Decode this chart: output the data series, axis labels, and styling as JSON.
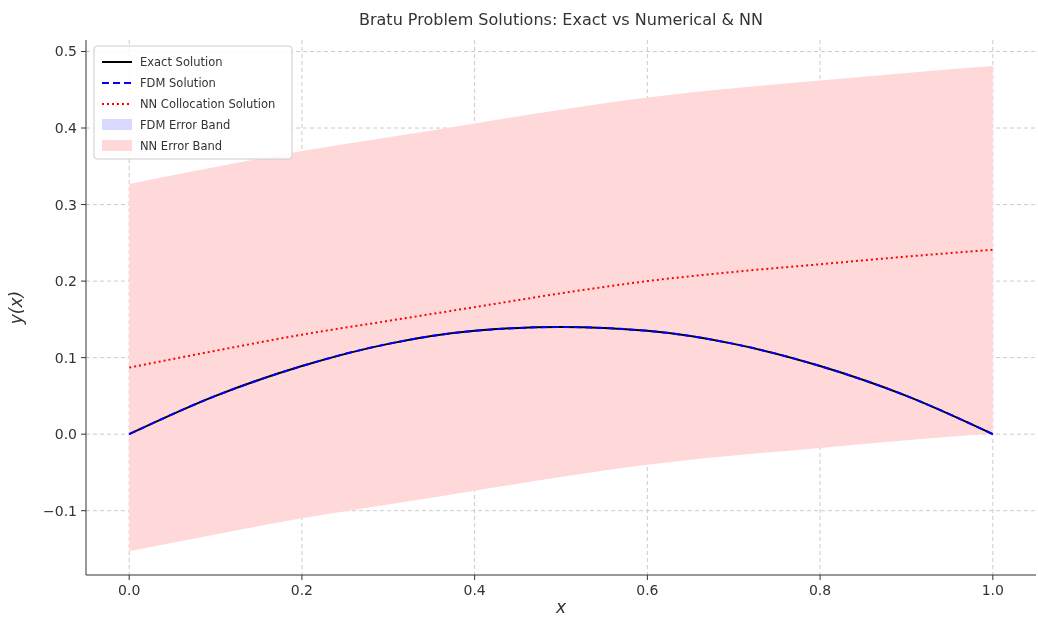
{
  "chart_data": {
    "type": "line",
    "title": "Bratu Problem Solutions: Exact vs Numerical & NN",
    "xlabel": "x",
    "ylabel": "y(x)",
    "x": [
      0,
      0.1,
      0.2,
      0.3,
      0.4,
      0.5,
      0.6,
      0.7,
      0.8,
      0.9,
      1.0
    ],
    "xlim": [
      -0.05,
      1.05
    ],
    "xticks": [
      {
        "value": 0,
        "label": "0.0"
      },
      0.2,
      0.4,
      0.6,
      0.8,
      {
        "value": 1,
        "label": "1.0"
      }
    ],
    "ylim": [
      -0.184,
      0.515
    ],
    "yticks": [
      {
        "value": -0.1,
        "label": "−0.1"
      },
      {
        "value": 0,
        "label": "0.0"
      },
      0.1,
      0.2,
      0.3,
      0.4,
      0.5
    ],
    "grid": true,
    "legend": "top left",
    "marker": "none",
    "annotations": [
      "FDM Error Band",
      "NN Error Band"
    ],
    "series": [
      {
        "name": "Exact Solution",
        "color": "#000000",
        "line_style": "solid",
        "values": [
          0,
          0.05,
          0.089,
          0.118,
          0.135,
          0.14,
          0.135,
          0.118,
          0.089,
          0.05,
          0
        ]
      },
      {
        "name": "FDM Solution",
        "color": "#0000ff",
        "line_style": "dashed",
        "values": [
          0,
          0.05,
          0.089,
          0.118,
          0.135,
          0.14,
          0.135,
          0.118,
          0.089,
          0.05,
          0
        ]
      },
      {
        "name": "NN Collocation Solution",
        "color": "#ff0000",
        "line_style": "dotted",
        "values": [
          0.087,
          0.109,
          0.13,
          0.148,
          0.166,
          0.184,
          0.2,
          0.212,
          0.222,
          0.232,
          0.241
        ],
        "lower": [
          -0.153,
          -0.131,
          -0.11,
          -0.092,
          -0.074,
          -0.056,
          -0.04,
          -0.028,
          -0.018,
          -0.008,
          0.001
        ],
        "upper": [
          0.327,
          0.349,
          0.37,
          0.388,
          0.406,
          0.424,
          0.44,
          0.452,
          0.462,
          0.472,
          0.481
        ]
      }
    ]
  }
}
